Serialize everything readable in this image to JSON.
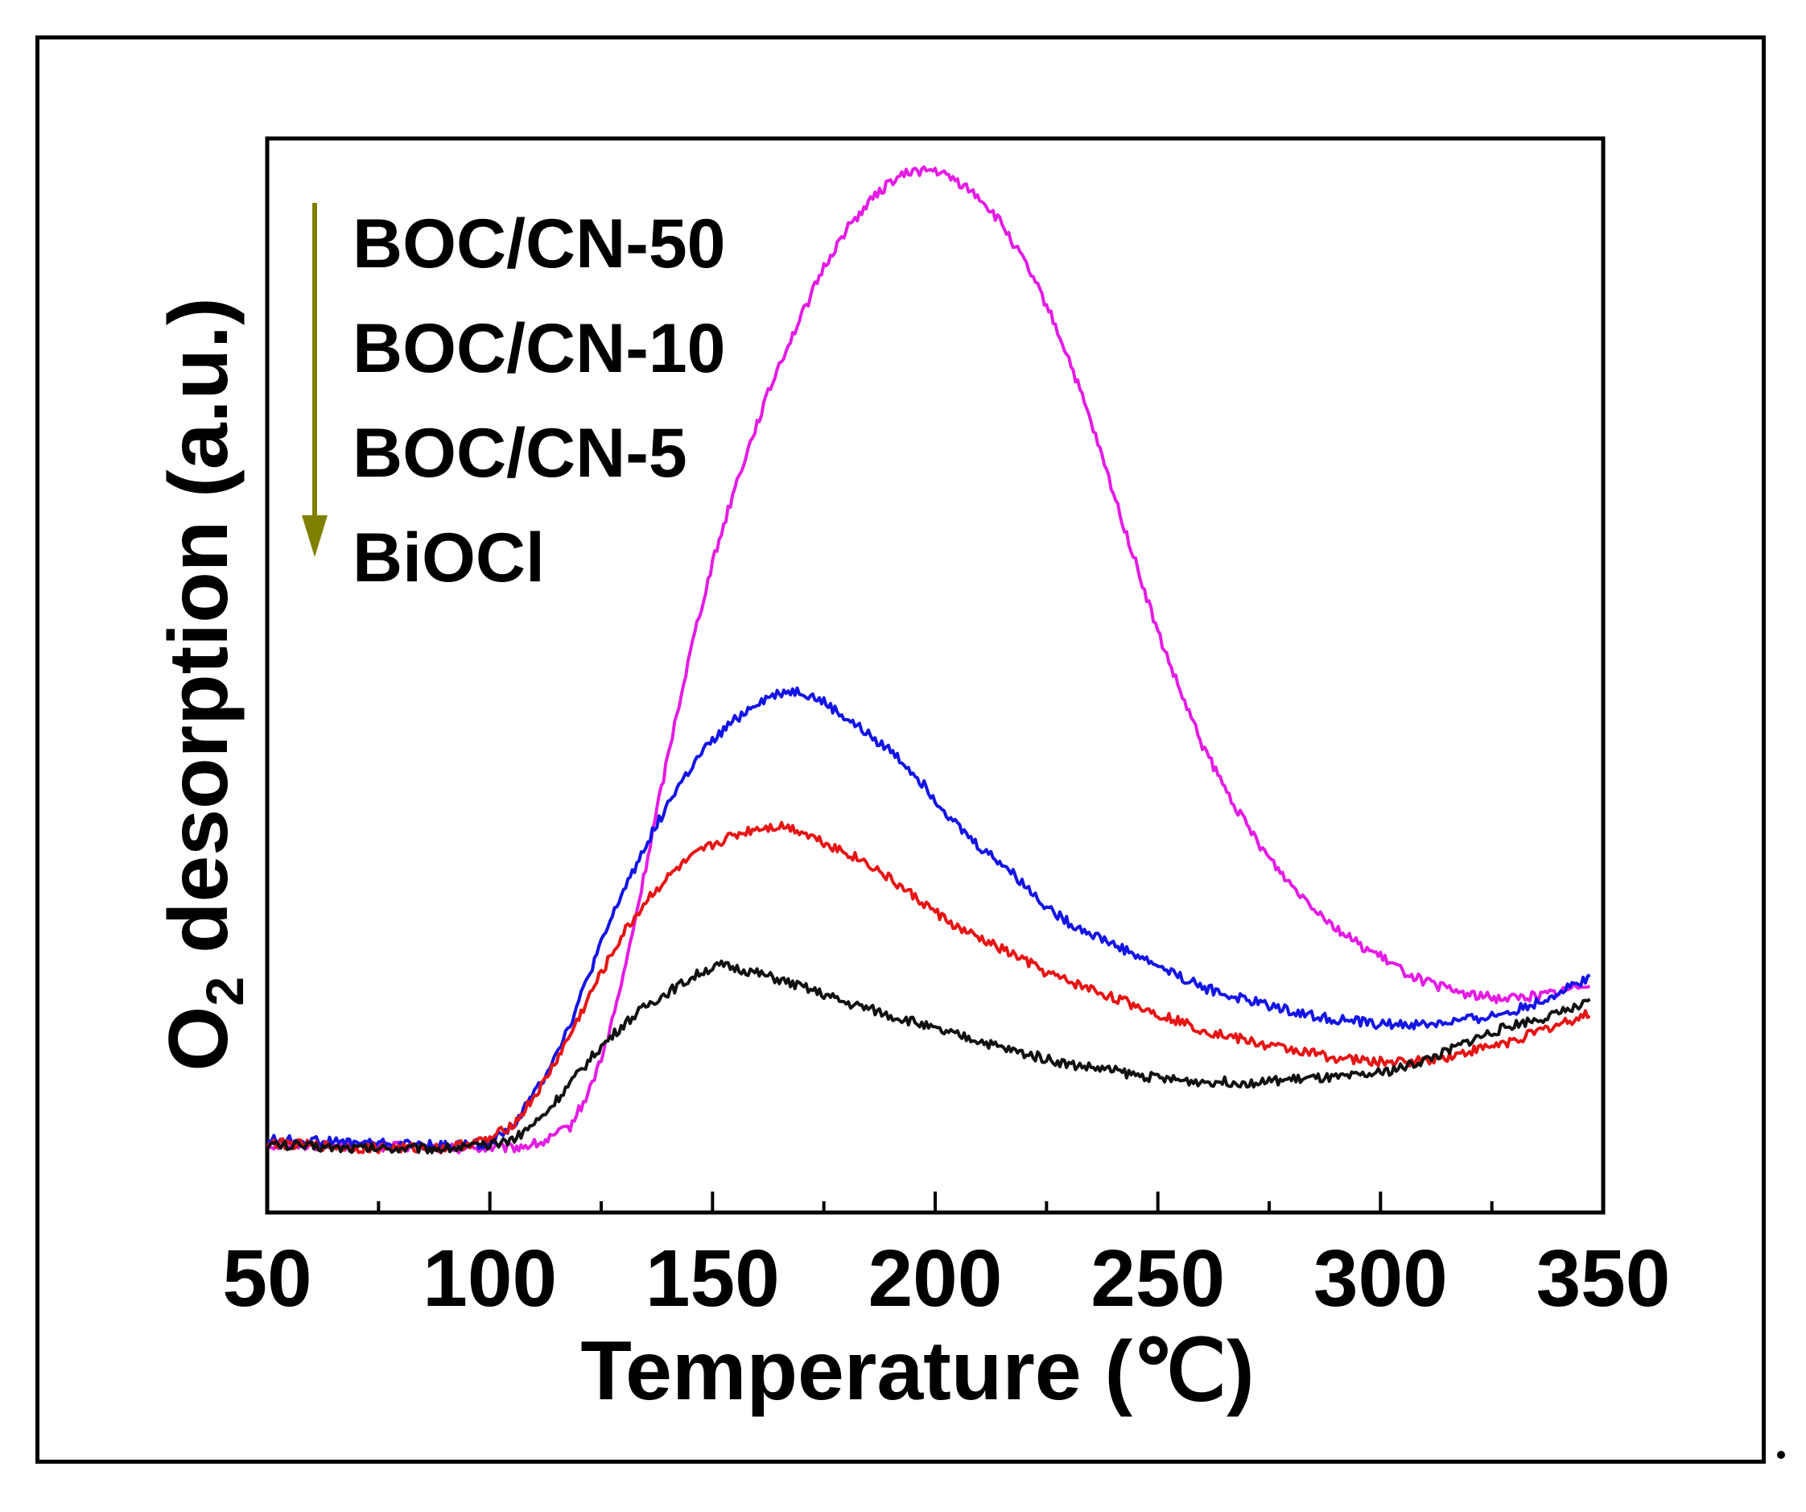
{
  "chart_data": {
    "type": "line",
    "xlabel": "Temperature (℃)",
    "ylabel": "O",
    "ylabel_subscript": "2",
    "ylabel_rest": " desorption (a.u.)",
    "xlim": [
      50,
      350
    ],
    "ylim": [
      0,
      100
    ],
    "xticks": [
      50,
      100,
      150,
      200,
      250,
      300,
      350
    ],
    "xtick_labels": [
      "50",
      "100",
      "150",
      "200",
      "250",
      "300",
      "350"
    ],
    "y_tick_labels_shown": false,
    "grid": false,
    "legend": {
      "placement": "top-left",
      "entries": [
        "BOC/CN-50",
        "BOC/CN-10",
        "BOC/CN-5",
        "BiOCl"
      ],
      "arrow_color": "#808000"
    },
    "series": [
      {
        "name": "BOC/CN-50",
        "color": "#e41ce4",
        "x": [
          50,
          70,
          90,
          105,
          112,
          118,
          122,
          126,
          130,
          134,
          138,
          142,
          146,
          150,
          155,
          160,
          165,
          170,
          175,
          180,
          185,
          190,
          195,
          200,
          205,
          210,
          215,
          220,
          225,
          230,
          235,
          240,
          245,
          250,
          255,
          260,
          265,
          270,
          275,
          280,
          285,
          290,
          295,
          300,
          305,
          310,
          315,
          320,
          325,
          330,
          335,
          340,
          347
        ],
        "y": [
          6.3,
          6.2,
          6.0,
          6.0,
          6.5,
          8.0,
          11.0,
          15.5,
          22.0,
          30.0,
          38.5,
          46.5,
          54.0,
          60.5,
          67.5,
          73.5,
          79.0,
          83.5,
          88.0,
          91.5,
          94.0,
          96.0,
          97.0,
          97.0,
          96.0,
          94.5,
          92.0,
          88.5,
          84.5,
          79.5,
          73.5,
          67.0,
          60.5,
          54.0,
          48.5,
          43.5,
          39.5,
          36.0,
          33.0,
          30.5,
          28.5,
          26.5,
          25.0,
          23.8,
          22.5,
          21.5,
          20.8,
          20.3,
          20.0,
          20.0,
          20.2,
          20.5,
          21.5
        ]
      },
      {
        "name": "BOC/CN-10",
        "color": "#1414e6",
        "x": [
          50,
          70,
          90,
          100,
          106,
          112,
          118,
          124,
          130,
          136,
          142,
          148,
          154,
          160,
          166,
          170,
          175,
          180,
          185,
          190,
          195,
          200,
          205,
          210,
          215,
          220,
          225,
          230,
          235,
          240,
          245,
          250,
          255,
          260,
          265,
          270,
          275,
          280,
          285,
          290,
          295,
          300,
          305,
          310,
          315,
          320,
          325,
          330,
          335,
          340,
          347
        ],
        "y": [
          6.8,
          6.5,
          6.2,
          6.5,
          8.5,
          12.5,
          17.5,
          24.0,
          30.0,
          35.0,
          39.5,
          43.0,
          45.5,
          47.5,
          48.5,
          48.5,
          47.5,
          46.0,
          44.5,
          43.0,
          41.0,
          38.5,
          36.0,
          34.0,
          32.5,
          30.5,
          28.5,
          27.0,
          26.0,
          25.0,
          24.0,
          23.0,
          22.0,
          21.0,
          20.3,
          19.8,
          19.3,
          18.8,
          18.3,
          18.0,
          17.8,
          17.5,
          17.5,
          17.5,
          17.7,
          18.0,
          18.3,
          18.8,
          19.5,
          20.5,
          22.0
        ]
      },
      {
        "name": "BOC/CN-5",
        "color": "#e61414",
        "x": [
          50,
          70,
          90,
          100,
          106,
          112,
          118,
          124,
          130,
          136,
          142,
          148,
          154,
          160,
          166,
          170,
          175,
          180,
          185,
          190,
          195,
          200,
          205,
          210,
          215,
          220,
          225,
          230,
          235,
          240,
          245,
          250,
          255,
          260,
          265,
          270,
          275,
          280,
          285,
          290,
          295,
          300,
          305,
          310,
          315,
          320,
          325,
          330,
          335,
          340,
          347
        ],
        "y": [
          6.5,
          6.0,
          6.0,
          6.8,
          8.5,
          12.0,
          16.5,
          21.5,
          26.0,
          29.5,
          32.0,
          33.8,
          35.0,
          35.8,
          36.0,
          35.5,
          34.5,
          33.5,
          32.5,
          31.0,
          29.5,
          28.0,
          26.5,
          25.5,
          24.5,
          23.5,
          22.3,
          21.5,
          20.8,
          20.0,
          19.3,
          18.5,
          17.8,
          17.0,
          16.5,
          16.0,
          15.5,
          15.2,
          14.8,
          14.4,
          14.2,
          14.0,
          14.0,
          14.2,
          14.5,
          15.0,
          15.5,
          16.0,
          16.8,
          17.5,
          18.5
        ]
      },
      {
        "name": "BiOCl",
        "color": "#111111",
        "x": [
          50,
          70,
          90,
          100,
          106,
          112,
          118,
          124,
          130,
          136,
          142,
          148,
          152,
          158,
          164,
          170,
          175,
          180,
          185,
          190,
          195,
          200,
          205,
          210,
          215,
          220,
          225,
          230,
          235,
          240,
          245,
          250,
          255,
          260,
          265,
          270,
          275,
          280,
          285,
          290,
          295,
          300,
          305,
          310,
          315,
          320,
          325,
          330,
          335,
          340,
          347
        ],
        "y": [
          6.3,
          6.0,
          6.0,
          6.2,
          7.0,
          9.0,
          12.0,
          15.0,
          17.5,
          19.5,
          21.0,
          22.5,
          23.0,
          22.5,
          21.8,
          21.0,
          20.3,
          19.5,
          19.0,
          18.3,
          17.8,
          17.0,
          16.5,
          16.0,
          15.3,
          14.8,
          14.3,
          13.8,
          13.5,
          13.2,
          12.8,
          12.5,
          12.3,
          12.2,
          12.2,
          12.1,
          12.2,
          12.4,
          12.5,
          12.5,
          12.7,
          13.0,
          13.5,
          14.2,
          15.0,
          16.0,
          16.8,
          17.5,
          18.0,
          18.5,
          19.5
        ]
      }
    ]
  }
}
